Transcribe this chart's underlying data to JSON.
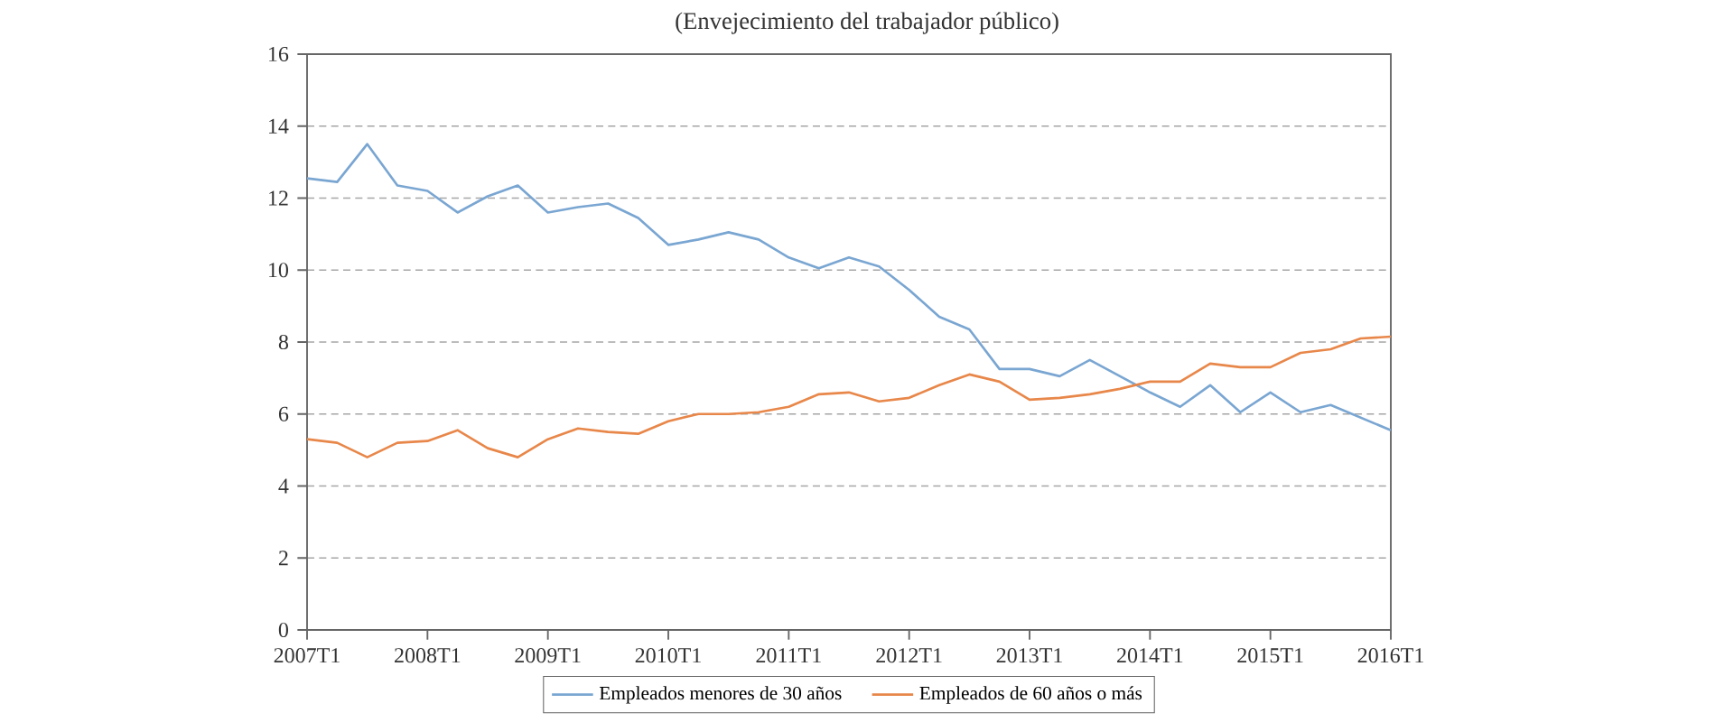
{
  "chart_data": {
    "type": "line",
    "title": "(Envejecimiento del trabajador público)",
    "categories": [
      "2007T1",
      null,
      null,
      null,
      "2008T1",
      null,
      null,
      null,
      "2009T1",
      null,
      null,
      null,
      "2010T1",
      null,
      null,
      null,
      "2011T1",
      null,
      null,
      null,
      "2012T1",
      null,
      null,
      null,
      "2013T1",
      null,
      null,
      null,
      "2014T1",
      null,
      null,
      null,
      "2015T1",
      null,
      null,
      null,
      "2016T1"
    ],
    "series": [
      {
        "name": "Empleados menores de 30 años",
        "color": "#7aa6d2",
        "values": [
          12.55,
          12.45,
          13.5,
          12.35,
          12.2,
          11.6,
          12.05,
          12.35,
          11.6,
          11.75,
          11.85,
          11.45,
          10.7,
          10.85,
          11.05,
          10.85,
          10.35,
          10.05,
          10.35,
          10.1,
          9.45,
          8.7,
          8.35,
          7.25,
          7.25,
          7.05,
          7.5,
          7.05,
          6.6,
          6.2,
          6.8,
          6.05,
          6.6,
          6.05,
          6.25,
          5.9,
          5.55
        ]
      },
      {
        "name": "Empleados de 60 años o más",
        "color": "#e8874a",
        "values": [
          5.3,
          5.2,
          4.8,
          5.2,
          5.25,
          5.55,
          5.05,
          4.8,
          5.3,
          5.6,
          5.5,
          5.45,
          5.8,
          6.0,
          6.0,
          6.05,
          6.2,
          6.55,
          6.6,
          6.35,
          6.45,
          6.8,
          7.1,
          6.9,
          6.4,
          6.45,
          6.55,
          6.7,
          6.9,
          6.9,
          7.4,
          7.3,
          7.3,
          7.7,
          7.8,
          8.1,
          8.15
        ]
      }
    ],
    "ylim": [
      0,
      16
    ],
    "yticks": [
      0,
      2,
      4,
      6,
      8,
      10,
      12,
      14,
      16
    ],
    "grid": "y",
    "legend": "bottom",
    "marker": "none",
    "line_style": "solid"
  }
}
